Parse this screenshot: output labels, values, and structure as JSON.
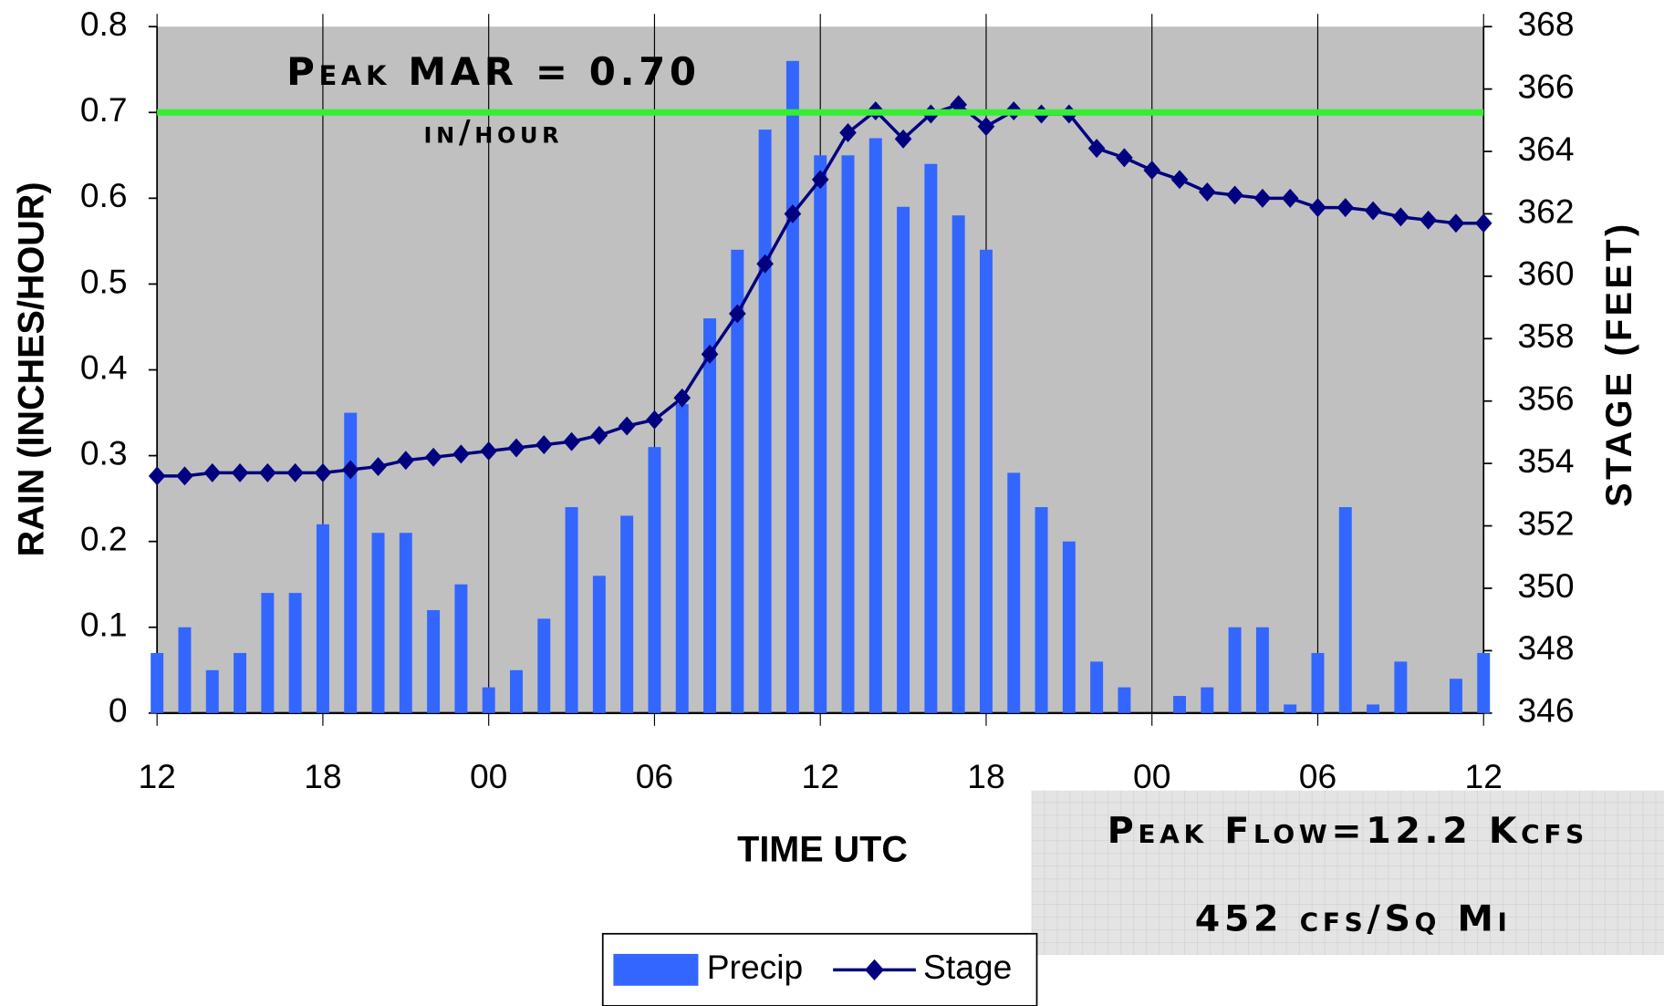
{
  "chart_data": {
    "type": "bar",
    "xlabel": "TIME UTC",
    "ylabel": "RAIN (INCHES/HOUR)",
    "y2label": "STAGE (FEET)",
    "categories": [
      "12",
      null,
      null,
      null,
      null,
      null,
      "18",
      null,
      null,
      null,
      null,
      null,
      "00",
      null,
      null,
      null,
      null,
      null,
      "06",
      null,
      null,
      null,
      null,
      null,
      "12",
      null,
      null,
      null,
      null,
      null,
      "18",
      null,
      null,
      null,
      null,
      null,
      "00",
      null,
      null,
      null,
      null,
      null,
      "06",
      null,
      null,
      null,
      null,
      null,
      "12"
    ],
    "series": [
      {
        "name": "Precip",
        "type": "bar",
        "color": "#3366ff",
        "axis": "y",
        "values": [
          0.07,
          0.1,
          0.05,
          0.07,
          0.14,
          0.14,
          0.22,
          0.35,
          0.21,
          0.21,
          0.12,
          0.15,
          0.03,
          0.05,
          0.11,
          0.24,
          0.16,
          0.23,
          0.31,
          0.36,
          0.46,
          0.54,
          0.68,
          0.76,
          0.65,
          0.65,
          0.67,
          0.59,
          0.64,
          0.58,
          0.54,
          0.28,
          0.24,
          0.2,
          0.06,
          0.03,
          0,
          0.02,
          0.03,
          0.1,
          0.1,
          0.01,
          0.07,
          0.24,
          0.01,
          0.06,
          0,
          0.04,
          0.07
        ]
      },
      {
        "name": "Stage",
        "type": "line",
        "color": "#000080",
        "axis": "y2",
        "values": [
          353.6,
          353.6,
          353.7,
          353.7,
          353.7,
          353.7,
          353.7,
          353.8,
          353.9,
          354.1,
          354.2,
          354.3,
          354.4,
          354.5,
          354.6,
          354.7,
          354.9,
          355.2,
          355.4,
          356.1,
          357.5,
          358.8,
          360.4,
          362.0,
          363.1,
          364.6,
          365.3,
          364.4,
          365.2,
          365.5,
          364.8,
          365.3,
          365.2,
          365.2,
          364.1,
          363.8,
          363.4,
          363.1,
          362.7,
          362.6,
          362.5,
          362.5,
          362.2,
          362.2,
          362.1,
          361.9,
          361.8,
          361.7,
          361.7
        ]
      }
    ],
    "ylim": [
      0,
      0.8
    ],
    "yticks": [
      0,
      0.1,
      0.2,
      0.3,
      0.4,
      0.5,
      0.6,
      0.7,
      0.8
    ],
    "y2lim": [
      346,
      368
    ],
    "y2ticks": [
      346,
      348,
      350,
      352,
      354,
      356,
      358,
      360,
      362,
      364,
      366,
      368
    ],
    "grid": "x",
    "background": "#c0c0c0",
    "reference_line": {
      "value": 0.7,
      "color": "#33ee33"
    },
    "annotations": [
      "Peak MAR = 0.70",
      "in/hour"
    ],
    "box_annotations": [
      "Peak Flow=12.2 Kcfs",
      "452 cfs/Sq Mi"
    ],
    "legend": "bottom"
  }
}
